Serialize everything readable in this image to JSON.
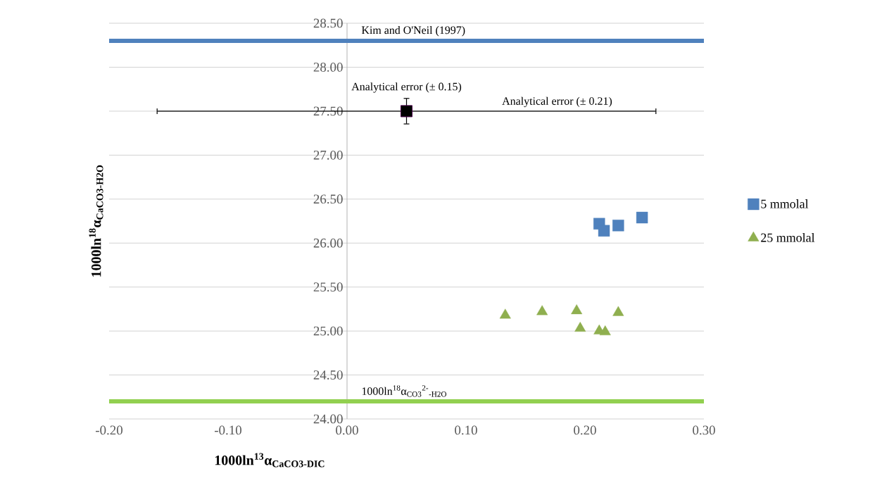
{
  "chart_data": {
    "type": "scatter",
    "xlabel": "1000ln$^{13}$α$_{CaCO3-DIC}$",
    "ylabel": "1000ln$^{18}$α$_{CaCO3-H2O}$",
    "xlim": [
      -0.2,
      0.3
    ],
    "ylim": [
      24.0,
      28.5
    ],
    "xticks": [
      {
        "value": -0.2,
        "label": "-0.20"
      },
      {
        "value": -0.1,
        "label": "-0.10"
      },
      {
        "value": 0,
        "label": "0.00"
      },
      {
        "value": 0.1,
        "label": "0.10"
      },
      {
        "value": 0.2,
        "label": "0.20"
      },
      {
        "value": 0.3,
        "label": "0.30"
      }
    ],
    "yticks": [
      {
        "value": 24.0,
        "label": "24.00"
      },
      {
        "value": 24.5,
        "label": "24.50"
      },
      {
        "value": 25.0,
        "label": "25.00"
      },
      {
        "value": 25.5,
        "label": "25.50"
      },
      {
        "value": 26.0,
        "label": "26.00"
      },
      {
        "value": 26.5,
        "label": "26.50"
      },
      {
        "value": 27.0,
        "label": "27.00"
      },
      {
        "value": 27.5,
        "label": "27.50"
      },
      {
        "value": 28.0,
        "label": "28.00"
      },
      {
        "value": 28.5,
        "label": "28.50"
      }
    ],
    "grid": "y",
    "legend": "right",
    "series": [
      {
        "name": "5 mmolal",
        "color": "#4f81bd",
        "marker": "square",
        "x": [
          0.212,
          0.216,
          0.228,
          0.248
        ],
        "values": [
          26.22,
          26.14,
          26.2,
          26.29
        ]
      },
      {
        "name": "25 mmolal",
        "color": "#8faf4f",
        "marker": "triangle",
        "x": [
          0.133,
          0.164,
          0.193,
          0.196,
          0.212,
          0.217,
          0.228
        ],
        "values": [
          25.18,
          25.22,
          25.23,
          25.03,
          25.0,
          24.99,
          25.21
        ]
      },
      {
        "color": "#000000",
        "marker": "square",
        "x": [
          0.05
        ],
        "values": [
          27.5
        ],
        "errors": [
          0.15
        ],
        "xerrors": [
          0.21
        ]
      }
    ],
    "ref_lines": [
      {
        "axis": "y",
        "value": 28.3,
        "label": "Kim and O'Neil (1997)",
        "color": "#4f81bd"
      },
      {
        "axis": "y",
        "value": 24.2,
        "label": "1000ln$^{18}$α$_{CO3}$$^{2-}$$_{-H2O}$",
        "color": "#92d050"
      }
    ],
    "annotations": [
      {
        "text": "Analytical error (± 0.15)",
        "x": 0.05,
        "y": 27.65
      },
      "Analytical error (± 0.21)"
    ]
  }
}
